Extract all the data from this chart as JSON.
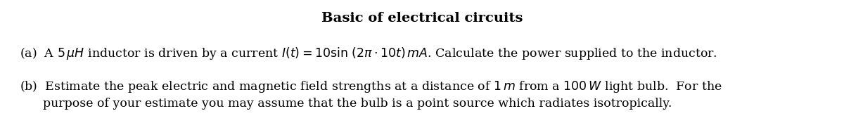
{
  "title": "Basic of electrical circuits",
  "title_fontsize": 14,
  "background_color": "#ffffff",
  "text_color": "#000000",
  "figsize": [
    12.0,
    1.85
  ],
  "dpi": 100,
  "line_a": "(a)  A $5\\,\\mu H$ inductor is driven by a current $I(t) = 10\\sin\\,(2\\pi \\cdot 10t)\\,mA$. Calculate the power supplied to the inductor.",
  "line_b1": "(b)  Estimate the peak electric and magnetic field strengths at a distance of $1\\,m$ from a $100\\,W$ light bulb.  For the",
  "line_b2": "      purpose of your estimate you may assume that the bulb is a point source which radiates isotropically.",
  "text_fontsize": 12.5
}
